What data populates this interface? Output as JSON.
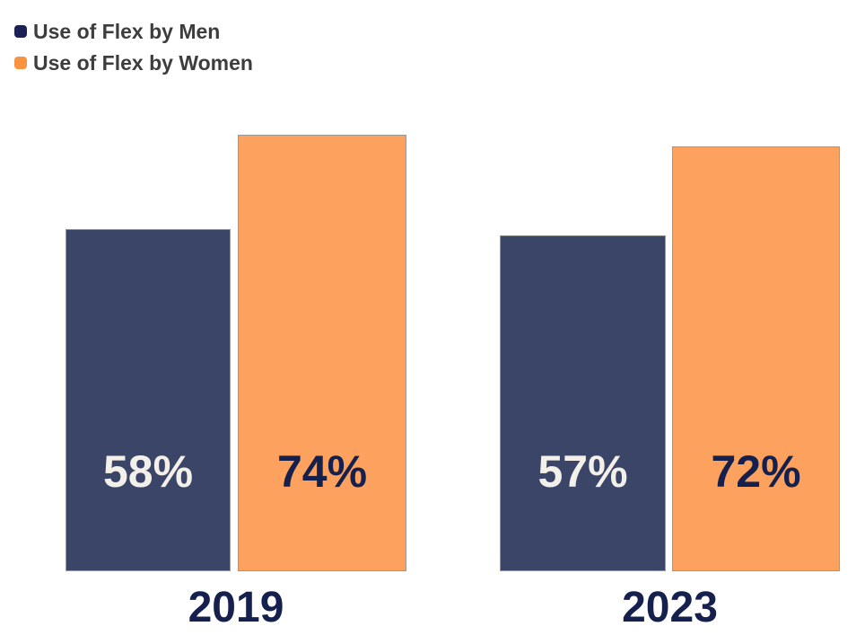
{
  "legend": {
    "items": [
      {
        "label": "Use of Flex by Men",
        "swatch_color": "#1b2153",
        "swatch_name": "men-legend-swatch"
      },
      {
        "label": "Use of Flex by Women",
        "swatch_color": "#f89440",
        "swatch_name": "women-legend-swatch"
      }
    ],
    "text_color": "#3d3d3d"
  },
  "chart_data": {
    "type": "bar",
    "categories": [
      "2019",
      "2023"
    ],
    "series": [
      {
        "name": "Use of Flex by Men",
        "values": [
          58,
          57
        ],
        "value_labels": [
          "58%",
          "57%"
        ],
        "fill": "#3a4568",
        "label_color": "#f2f0e9"
      },
      {
        "name": "Use of Flex by Women",
        "values": [
          74,
          72
        ],
        "value_labels": [
          "74%",
          "72%"
        ],
        "fill": "#fda25e",
        "label_color": "#16204d"
      }
    ],
    "unit": "%",
    "ylim": [
      0,
      100
    ],
    "grid": false,
    "axes_hidden": true,
    "legend_position": "top-left",
    "bar_border_color": "#999999",
    "category_label_color": "#15204e",
    "background_color": "#ffffff"
  }
}
